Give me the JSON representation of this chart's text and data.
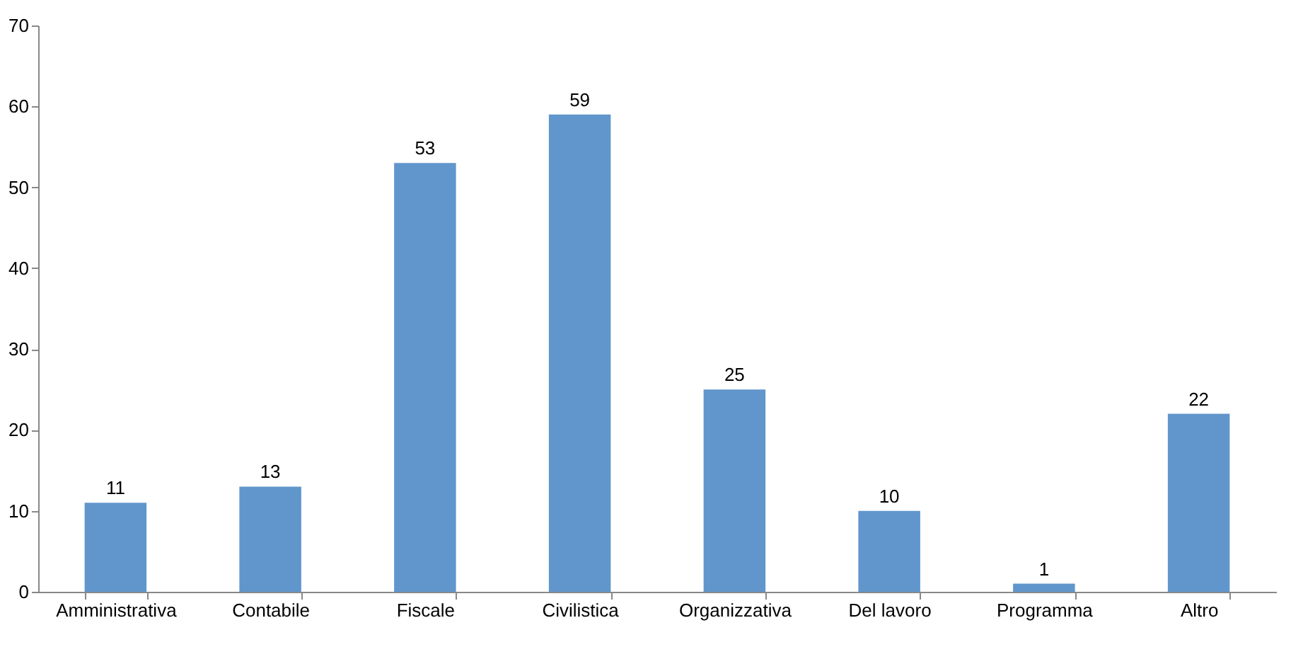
{
  "chart_data": {
    "type": "bar",
    "categories": [
      "Amministrativa",
      "Contabile",
      "Fiscale",
      "Civilistica",
      "Organizzativa",
      "Del lavoro",
      "Programma",
      "Altro"
    ],
    "values": [
      11,
      13,
      53,
      59,
      25,
      10,
      1,
      22
    ],
    "color": "#6096cc",
    "ylim": [
      0,
      70
    ],
    "yticks": [
      0,
      10,
      20,
      30,
      40,
      50,
      60,
      70
    ],
    "grid": false,
    "data_labels": true
  }
}
